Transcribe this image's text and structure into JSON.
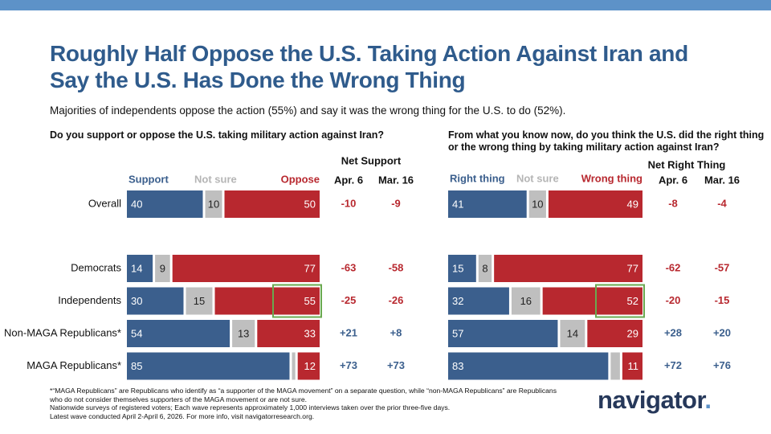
{
  "header": {
    "title": "Roughly Half Oppose the U.S. Taking Action Against Iran and Say the U.S. Has Done the Wrong Thing",
    "subtitle": "Majorities of independents oppose the action (55%) and say it was the wrong thing for the U.S. to do (52%)."
  },
  "chart_data": [
    {
      "type": "bar",
      "orientation": "horizontal",
      "stacked": true,
      "question": "Do you support or oppose the U.S. taking military action against Iran?",
      "categories": [
        "Overall",
        "Democrats",
        "Independents",
        "Non-MAGA Republicans*",
        "MAGA Republicans*"
      ],
      "xlim": [
        0,
        100
      ],
      "series": [
        {
          "name": "Support",
          "color": "#3b5f8d",
          "label_color": "#ffffff",
          "values": [
            40,
            14,
            30,
            54,
            85
          ]
        },
        {
          "name": "Not sure",
          "color": "#bfbfbf",
          "name_color": "#b5b5b5",
          "label_color": "#222222",
          "values": [
            10,
            9,
            15,
            13,
            3
          ],
          "value_labels": [
            "10",
            "9",
            "15",
            "13",
            null
          ]
        },
        {
          "name": "Oppose",
          "color": "#b8282f",
          "label_color": "#ffffff",
          "values": [
            50,
            77,
            55,
            33,
            12
          ]
        }
      ],
      "highlight": {
        "series": 2,
        "index": 2,
        "color": "#6aa84f"
      },
      "net_title": "Net Support",
      "positive_color": "#3b5f8d",
      "negative_color": "#b8282f",
      "net_columns": [
        {
          "name": "Apr. 6",
          "values": [
            -10,
            -63,
            -25,
            21,
            73
          ],
          "value_labels": [
            "-10",
            "-63",
            "-25",
            "+21",
            "+73"
          ]
        },
        {
          "name": "Mar. 16",
          "values": [
            -9,
            -58,
            -26,
            8,
            73
          ],
          "value_labels": [
            "-9",
            "-58",
            "-26",
            "+8",
            "+73"
          ]
        }
      ]
    },
    {
      "type": "bar",
      "orientation": "horizontal",
      "stacked": true,
      "question": "From what you know now, do you think the U.S. did the right thing or the wrong thing by taking military action against Iran?",
      "xlim": [
        0,
        100
      ],
      "series": [
        {
          "name": "Right thing",
          "color": "#3b5f8d",
          "label_color": "#ffffff",
          "values": [
            41,
            15,
            32,
            57,
            83
          ]
        },
        {
          "name": "Not sure",
          "color": "#bfbfbf",
          "name_color": "#b5b5b5",
          "label_color": "#222222",
          "values": [
            10,
            8,
            16,
            14,
            6
          ],
          "value_labels": [
            "10",
            "8",
            "16",
            "14",
            null
          ]
        },
        {
          "name": "Wrong thing",
          "color": "#b8282f",
          "label_color": "#ffffff",
          "values": [
            49,
            77,
            52,
            29,
            11
          ]
        }
      ],
      "highlight": {
        "series": 2,
        "index": 2,
        "color": "#6aa84f"
      },
      "net_title": "Net Right Thing",
      "positive_color": "#3b5f8d",
      "negative_color": "#b8282f",
      "net_columns": [
        {
          "name": "Apr. 6",
          "values": [
            -8,
            -62,
            -20,
            28,
            72
          ],
          "value_labels": [
            "-8",
            "-62",
            "-20",
            "+28",
            "+72"
          ]
        },
        {
          "name": "Mar. 16",
          "values": [
            -4,
            -57,
            -15,
            20,
            76
          ],
          "value_labels": [
            "-4",
            "-57",
            "-15",
            "+20",
            "+76"
          ]
        }
      ]
    }
  ],
  "footnotes": [
    "*“MAGA Republicans” are Republicans who identify as “a supporter of the MAGA movement” on a separate question, while “non-MAGA Republicans” are Republicans who do not consider themselves supporters of the MAGA movement or are not sure.",
    "Nationwide surveys of registered voters; Each wave represents approximately 1,000 interviews taken over the prior three-five days.",
    "Latest wave conducted April 2-April 6, 2026. For more info, visit navigatorresearch.org."
  ],
  "logo": {
    "text": "navigator",
    "dot": "."
  }
}
